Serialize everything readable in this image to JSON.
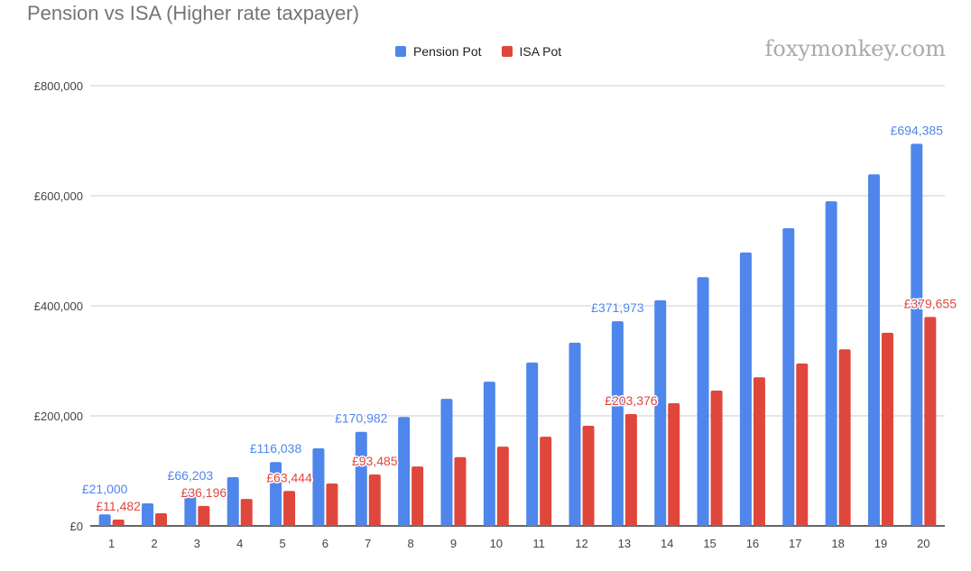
{
  "chart_data": {
    "type": "bar",
    "title": "Pension vs ISA (Higher rate taxpayer)",
    "watermark": "foxymonkey.com",
    "categories": [
      "1",
      "2",
      "3",
      "4",
      "5",
      "6",
      "7",
      "8",
      "9",
      "10",
      "11",
      "12",
      "13",
      "14",
      "15",
      "16",
      "17",
      "18",
      "19",
      "20"
    ],
    "series": [
      {
        "name": "Pension Pot",
        "color": "#4f86ec",
        "values": [
          21000,
          41000,
          66203,
          88500,
          116038,
          141000,
          170982,
          198000,
          231000,
          262000,
          297000,
          333000,
          371973,
          410000,
          452000,
          497000,
          541000,
          590000,
          639000,
          694385
        ],
        "labels": [
          "£21,000",
          null,
          "£66,203",
          null,
          "£116,038",
          null,
          "£170,982",
          null,
          null,
          null,
          null,
          null,
          "£371,973",
          null,
          null,
          null,
          null,
          null,
          null,
          "£694,385"
        ]
      },
      {
        "name": "ISA Pot",
        "color": "#e0473c",
        "values": [
          11482,
          23000,
          36196,
          49000,
          63444,
          77000,
          93485,
          108000,
          125000,
          144000,
          162000,
          182000,
          203376,
          223000,
          246000,
          270000,
          295000,
          321000,
          351000,
          379655
        ],
        "labels": [
          "£11,482",
          null,
          "£36,196",
          null,
          "£63,444",
          null,
          "£93,485",
          null,
          null,
          null,
          null,
          null,
          "£203,376",
          null,
          null,
          null,
          null,
          null,
          null,
          "£379,655"
        ]
      }
    ],
    "yticks": [
      0,
      200000,
      400000,
      600000,
      800000
    ],
    "ytick_labels": [
      "£0",
      "£200,000",
      "£400,000",
      "£600,000",
      "£800,000"
    ],
    "ylim": [
      0,
      800000
    ],
    "legend": "top-center",
    "grid": true
  }
}
